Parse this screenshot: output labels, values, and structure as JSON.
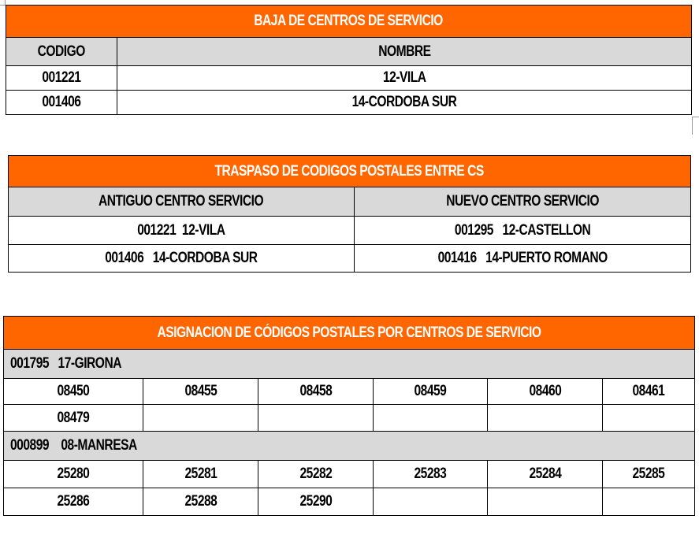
{
  "baja": {
    "title": "BAJA DE CENTROS DE SERVICIO",
    "headers": [
      "CODIGO",
      "NOMBRE"
    ],
    "rows": [
      [
        "001221",
        "12-VILA"
      ],
      [
        "001406",
        "14-CORDOBA SUR"
      ]
    ]
  },
  "traspaso": {
    "title": "TRASPASO DE CODIGOS POSTALES ENTRE CS",
    "headers": [
      "ANTIGUO CENTRO SERVICIO",
      "NUEVO CENTRO SERVICIO"
    ],
    "rows": [
      [
        "001221  12-VILA",
        "001295   12-CASTELLON"
      ],
      [
        "001406   14-CORDOBA SUR",
        "001416   14-PUERTO ROMANO"
      ]
    ]
  },
  "asignacion": {
    "title": "ASIGNACION DE CÓDIGOS POSTALES POR CENTROS DE SERVICIO",
    "groups": [
      {
        "label": "001795   17-GIRONA",
        "rows": [
          [
            "08450",
            "08455",
            "08458",
            "08459",
            "08460",
            "08461"
          ],
          [
            "08479",
            "",
            "",
            "",
            "",
            ""
          ]
        ]
      },
      {
        "label": "000899    08-MANRESA",
        "rows": [
          [
            "25280",
            "25281",
            "25282",
            "25283",
            "25284",
            "25285"
          ],
          [
            "25286",
            "25288",
            "25290",
            "",
            "",
            ""
          ]
        ]
      }
    ]
  }
}
